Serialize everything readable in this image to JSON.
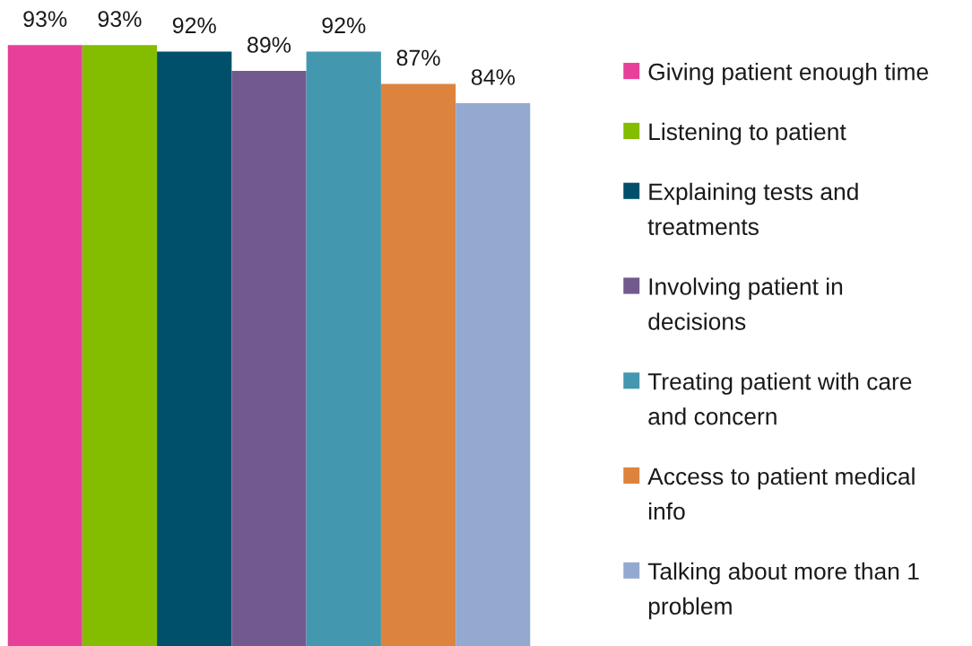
{
  "chart_data": {
    "type": "bar",
    "categories": [
      null
    ],
    "series": [
      {
        "name": "Giving patient enough time",
        "color": "#e6409a",
        "values": [
          93
        ],
        "value_labels": [
          "93%"
        ]
      },
      {
        "name": "Listening to patient",
        "color": "#84bd00",
        "values": [
          93
        ],
        "value_labels": [
          "93%"
        ]
      },
      {
        "name": "Explaining tests and treatments",
        "color": "#00506b",
        "values": [
          92
        ],
        "value_labels": [
          "92%"
        ]
      },
      {
        "name": "Involving patient in decisions",
        "color": "#725a8f",
        "values": [
          89
        ],
        "value_labels": [
          "89%"
        ]
      },
      {
        "name": "Treating patient with care and concern",
        "color": "#4398b0",
        "values": [
          92
        ],
        "value_labels": [
          "92%"
        ]
      },
      {
        "name": "Access to patient medical info",
        "color": "#dc843e",
        "values": [
          87
        ],
        "value_labels": [
          "87%"
        ]
      },
      {
        "name": "Talking about more than 1 problem",
        "color": "#94a9d0",
        "values": [
          84
        ],
        "value_labels": [
          "84%"
        ]
      }
    ],
    "legend": "right"
  }
}
